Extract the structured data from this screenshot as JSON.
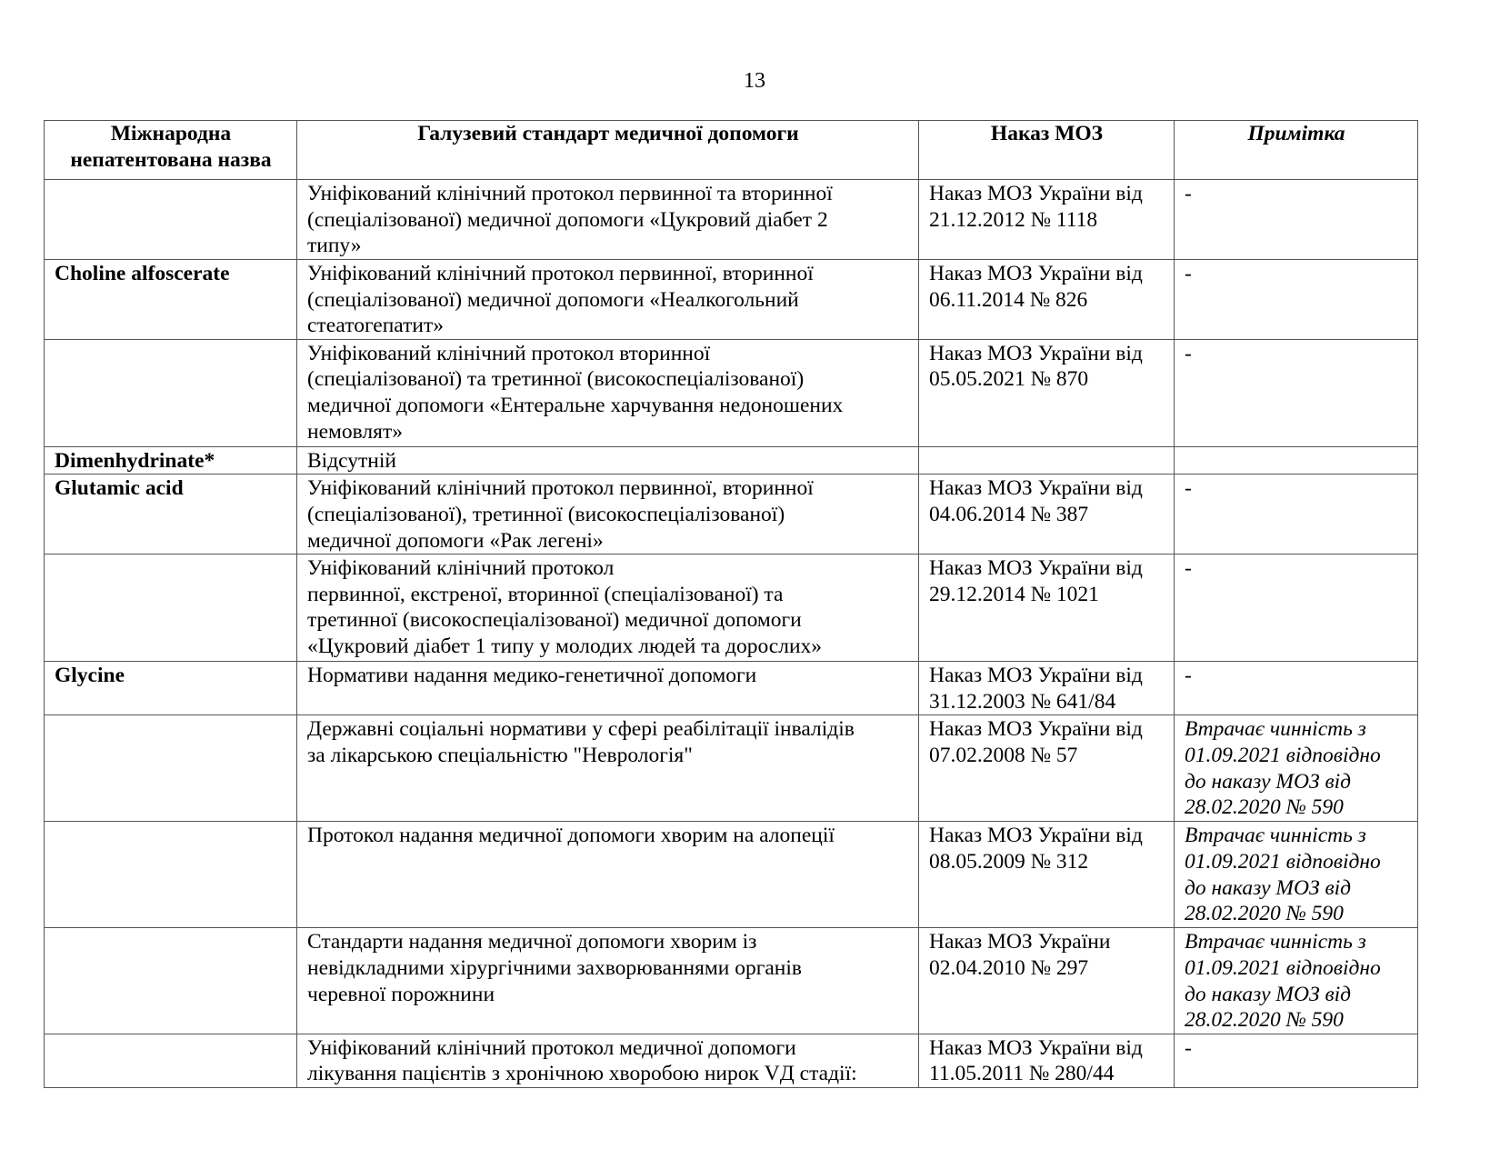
{
  "page_number": "13",
  "table": {
    "headers": {
      "inn": [
        "Міжнародна",
        "непатентована назва"
      ],
      "standard": "Галузевий стандарт медичної допомоги",
      "order": "Наказ МОЗ",
      "note": "Примітка"
    },
    "rows": [
      {
        "inn": "",
        "standard": [
          "Уніфікований клінічний протокол первинної та вторинної",
          "(спеціалізованої) медичної допомоги «Цукровий діабет 2",
          "типу»"
        ],
        "order": [
          "Наказ МОЗ України від",
          "21.12.2012 № 1118"
        ],
        "note": [
          "-"
        ],
        "note_italic": false
      },
      {
        "inn": "Choline alfoscerate",
        "standard": [
          "Уніфікований клінічний протокол первинної, вторинної",
          "(спеціалізованої) медичної допомоги «Неалкогольний",
          "стеатогепатит»"
        ],
        "order": [
          "Наказ МОЗ України від",
          "06.11.2014 № 826"
        ],
        "note": [
          "-"
        ],
        "note_italic": false
      },
      {
        "inn": "",
        "standard": [
          "Уніфікований клінічний протокол вторинної",
          "(спеціалізованої) та третинної (високоспеціалізованої)",
          "медичної допомоги «Ентеральне харчування недоношених",
          "немовлят»"
        ],
        "order": [
          "Наказ МОЗ України від",
          "05.05.2021 № 870"
        ],
        "note": [
          "-"
        ],
        "note_italic": false
      },
      {
        "inn": "Dimenhydrinate*",
        "standard": [
          "Відсутній"
        ],
        "order": [],
        "note": [],
        "note_italic": false
      },
      {
        "inn": "Glutamic acid",
        "standard": [
          "Уніфікований клінічний протокол первинної, вторинної",
          "(спеціалізованої), третинної (високоспеціалізованої)",
          "медичної допомоги «Рак легені»"
        ],
        "order": [
          "Наказ МОЗ України від",
          "04.06.2014 № 387"
        ],
        "note": [
          "-"
        ],
        "note_italic": false
      },
      {
        "inn": "",
        "standard": [
          "Уніфікований клінічний протокол",
          "первинної, екстреної, вторинної (спеціалізованої) та",
          "третинної (високоспеціалізованої) медичної допомоги",
          "«Цукровий діабет 1 типу у молодих людей та дорослих»"
        ],
        "order": [
          "Наказ МОЗ України від",
          "29.12.2014 № 1021"
        ],
        "note": [
          "-"
        ],
        "note_italic": false
      },
      {
        "inn": "Glycine",
        "standard": [
          "Нормативи надання медико-генетичної допомоги"
        ],
        "order": [
          "Наказ МОЗ України від",
          "31.12.2003 № 641/84"
        ],
        "note": [
          "-"
        ],
        "note_italic": false
      },
      {
        "inn": "",
        "standard": [
          "Державні соціальні нормативи у сфері реабілітації інвалідів",
          "за лікарською спеціальністю \"Неврологія\""
        ],
        "order": [
          "Наказ МОЗ України від",
          "07.02.2008 № 57"
        ],
        "note": [
          "Втрачає чинність з",
          "01.09.2021 відповідно",
          "до наказу МОЗ від",
          "28.02.2020  № 590"
        ],
        "note_italic": true
      },
      {
        "inn": "",
        "standard": [
          "Протокол надання медичної допомоги хворим на алопеції"
        ],
        "order": [
          "Наказ МОЗ України від",
          "08.05.2009 № 312"
        ],
        "note": [
          "Втрачає чинність з",
          "01.09.2021 відповідно",
          "до наказу МОЗ від",
          "28.02.2020  № 590"
        ],
        "note_italic": true
      },
      {
        "inn": "",
        "standard": [
          "Стандарти надання медичної допомоги хворим із",
          "невідкладними хірургічними захворюваннями органів",
          "черевної порожнини"
        ],
        "order": [
          "Наказ МОЗ України",
          "02.04.2010 № 297"
        ],
        "note": [
          "Втрачає чинність з",
          "01.09.2021 відповідно",
          "до наказу МОЗ від",
          "28.02.2020  № 590"
        ],
        "note_italic": true
      },
      {
        "inn": "",
        "standard": [
          "Уніфікований клінічний протокол медичної допомоги",
          "лікування пацієнтів з хронічною хворобою нирок VД стадії:"
        ],
        "order": [
          "Наказ МОЗ України від",
          "11.05.2011 № 280/44"
        ],
        "note": [
          "-"
        ],
        "note_italic": false
      }
    ]
  }
}
